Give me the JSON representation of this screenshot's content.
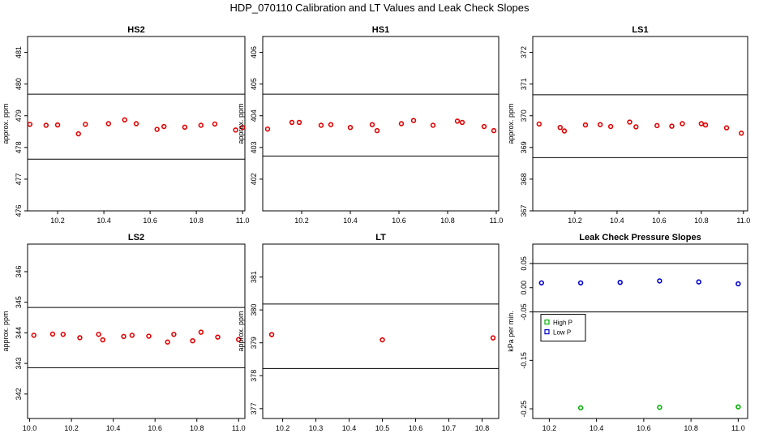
{
  "page": {
    "title": "HDP_070110  Calibration and LT Values and Leak Check Slopes"
  },
  "chart_data": [
    {
      "type": "scatter",
      "title": "HS2",
      "ylabel": "approx. ppm",
      "xlim": [
        10.07,
        11.01
      ],
      "ylim": [
        476,
        481.5
      ],
      "xticks": [
        10.2,
        10.4,
        10.6,
        10.8,
        11.0
      ],
      "xtick_labels": [
        "10.2",
        "10.4",
        "10.6",
        "10.8",
        "11.0"
      ],
      "yticks": [
        476,
        477,
        478,
        479,
        480,
        481
      ],
      "hlines": [
        479.68,
        477.63
      ],
      "grid": false,
      "series": [
        {
          "color": "#e00000",
          "x": [
            10.08,
            10.15,
            10.2,
            10.29,
            10.32,
            10.42,
            10.49,
            10.54,
            10.63,
            10.66,
            10.75,
            10.82,
            10.88,
            10.97,
            11.0
          ],
          "y": [
            478.73,
            478.7,
            478.71,
            478.43,
            478.73,
            478.75,
            478.87,
            478.75,
            478.57,
            478.66,
            478.64,
            478.7,
            478.74,
            478.55,
            478.63
          ]
        }
      ]
    },
    {
      "type": "scatter",
      "title": "HS1",
      "ylabel": "approx. ppm",
      "xlim": [
        10.04,
        11.01
      ],
      "ylim": [
        401,
        406.5
      ],
      "xticks": [
        10.2,
        10.4,
        10.6,
        10.8,
        11.0
      ],
      "xtick_labels": [
        "10.2",
        "10.4",
        "10.6",
        "10.8",
        "11.0"
      ],
      "yticks": [
        402,
        403,
        404,
        405,
        406
      ],
      "hlines": [
        404.68,
        402.73
      ],
      "grid": false,
      "series": [
        {
          "color": "#e00000",
          "x": [
            10.06,
            10.16,
            10.19,
            10.28,
            10.32,
            10.4,
            10.49,
            10.51,
            10.61,
            10.66,
            10.74,
            10.84,
            10.86,
            10.95,
            10.99
          ],
          "y": [
            403.58,
            403.79,
            403.79,
            403.7,
            403.72,
            403.63,
            403.72,
            403.53,
            403.75,
            403.85,
            403.7,
            403.83,
            403.79,
            403.66,
            403.53
          ]
        }
      ]
    },
    {
      "type": "scatter",
      "title": "LS1",
      "ylabel": "approx. ppm",
      "xlim": [
        10.0,
        11.02
      ],
      "ylim": [
        367,
        372.5
      ],
      "xticks": [
        10.2,
        10.4,
        10.6,
        10.8,
        11.0
      ],
      "xtick_labels": [
        "10.2",
        "10.4",
        "10.6",
        "10.8",
        "11.0"
      ],
      "yticks": [
        367,
        368,
        369,
        370,
        371,
        372
      ],
      "hlines": [
        370.66,
        368.68
      ],
      "grid": false,
      "series": [
        {
          "color": "#e00000",
          "x": [
            10.03,
            10.13,
            10.15,
            10.25,
            10.32,
            10.37,
            10.46,
            10.49,
            10.59,
            10.66,
            10.71,
            10.8,
            10.82,
            10.92,
            10.99
          ],
          "y": [
            369.74,
            369.63,
            369.52,
            369.71,
            369.72,
            369.66,
            369.8,
            369.65,
            369.69,
            369.67,
            369.75,
            369.75,
            369.71,
            369.62,
            369.45
          ]
        }
      ]
    },
    {
      "type": "scatter",
      "title": "LS2",
      "ylabel": "approx. ppm",
      "xlim": [
        9.99,
        11.03
      ],
      "ylim": [
        341.2,
        346.9
      ],
      "xticks": [
        10.0,
        10.2,
        10.4,
        10.6,
        10.8,
        11.0
      ],
      "xtick_labels": [
        "10.0",
        "10.2",
        "10.4",
        "10.6",
        "10.8",
        "11.0"
      ],
      "yticks": [
        342,
        343,
        344,
        345,
        346
      ],
      "hlines": [
        344.83,
        342.86
      ],
      "grid": false,
      "series": [
        {
          "color": "#e00000",
          "x": [
            10.02,
            10.11,
            10.16,
            10.24,
            10.33,
            10.35,
            10.45,
            10.49,
            10.57,
            10.66,
            10.69,
            10.78,
            10.82,
            10.9,
            11.0
          ],
          "y": [
            343.92,
            343.96,
            343.95,
            343.84,
            343.95,
            343.77,
            343.88,
            343.92,
            343.89,
            343.7,
            343.95,
            343.74,
            344.02,
            343.86,
            343.78
          ]
        }
      ]
    },
    {
      "type": "scatter",
      "title": "LT",
      "ylabel": "approx. ppm",
      "xlim": [
        10.14,
        10.85
      ],
      "ylim": [
        376.7,
        382.0
      ],
      "xticks": [
        10.2,
        10.3,
        10.4,
        10.5,
        10.6,
        10.7,
        10.8
      ],
      "xtick_labels": [
        "10.2",
        "10.3",
        "10.4",
        "10.5",
        "10.6",
        "10.7",
        "10.8"
      ],
      "yticks": [
        377,
        378,
        379,
        380,
        381
      ],
      "hlines": [
        380.18,
        378.22
      ],
      "grid": false,
      "series": [
        {
          "color": "#e00000",
          "x": [
            10.167,
            10.5,
            10.833
          ],
          "y": [
            379.25,
            379.09,
            379.15
          ]
        }
      ]
    },
    {
      "type": "scatter",
      "title": "Leak Check Pressure Slopes",
      "ylabel": "kPa per min.",
      "xlim": [
        10.13,
        11.04
      ],
      "ylim": [
        -0.27,
        0.09
      ],
      "xticks": [
        10.2,
        10.4,
        10.6,
        10.8,
        11.0
      ],
      "xtick_labels": [
        "10.2",
        "10.4",
        "10.6",
        "10.8",
        "11.0"
      ],
      "yticks": [
        -0.25,
        -0.15,
        -0.05,
        0.0,
        0.05
      ],
      "ytick_labels": [
        "-0.25",
        "-0.15",
        "-0.05",
        "0.00",
        "0.05"
      ],
      "hlines": [
        0.05,
        -0.05
      ],
      "grid": false,
      "legend": {
        "placement": "left",
        "entries": [
          {
            "label": "High P",
            "color": "#00b000"
          },
          {
            "label": "Low P",
            "color": "#0000cc"
          }
        ]
      },
      "series": [
        {
          "name": "High P",
          "color": "#00b000",
          "x": [
            10.333,
            10.667,
            11.0
          ],
          "y": [
            -0.248,
            -0.247,
            -0.246
          ]
        },
        {
          "name": "Low P",
          "color": "#0000cc",
          "x": [
            10.167,
            10.333,
            10.5,
            10.667,
            10.833,
            11.0
          ],
          "y": [
            0.01,
            0.01,
            0.011,
            0.014,
            0.012,
            0.008
          ]
        }
      ]
    }
  ]
}
